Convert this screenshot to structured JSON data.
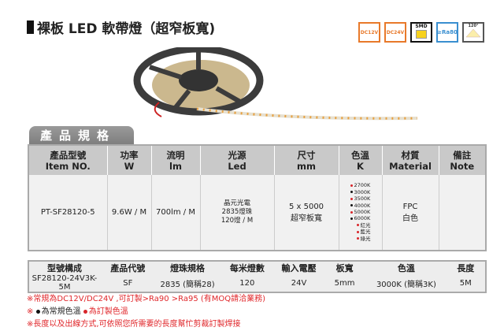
{
  "title": "裸板 LED 軟帶燈（超窄板寬)",
  "badges": [
    {
      "label": "DC12V",
      "icon": "dc12v-icon",
      "color": "#e8792a"
    },
    {
      "label": "DC24V",
      "icon": "dc24v-icon",
      "color": "#e8792a"
    },
    {
      "label": "SMD",
      "icon": "smd-chip-icon",
      "color": "#111111"
    },
    {
      "label": "≥Ra80",
      "icon": "ra80-icon",
      "color": "#3a8fd0"
    },
    {
      "label": "120°",
      "icon": "beam-angle-icon",
      "color": "#555555"
    }
  ],
  "section_tab": "產品規格",
  "spec_table": {
    "headers": [
      [
        "產品型號",
        "Item NO."
      ],
      [
        "功率",
        "W"
      ],
      [
        "流明",
        "lm"
      ],
      [
        "光源",
        "Led"
      ],
      [
        "尺寸",
        "mm"
      ],
      [
        "色溫",
        "K"
      ],
      [
        "材質",
        "Material"
      ],
      [
        "備註",
        "Note"
      ]
    ],
    "row": {
      "item": "PT-SF28120-5",
      "power": "9.6W / M",
      "lumen": "700lm / M",
      "led": [
        "晶元光電",
        "2835燈珠",
        "120燈 / M"
      ],
      "size": [
        "5 x 5000",
        "超窄板寬"
      ],
      "color_temps": [
        {
          "label": "2700K",
          "dot": "#d8262b"
        },
        {
          "label": "3000K",
          "dot": "#111111"
        },
        {
          "label": "3500K",
          "dot": "#d8262b"
        },
        {
          "label": "4000K",
          "dot": "#111111"
        },
        {
          "label": "5000K",
          "dot": "#d8262b"
        },
        {
          "label": "6000K",
          "dot": "#111111"
        },
        {
          "label": "紅光",
          "dot": "#d8262b"
        },
        {
          "label": "藍光",
          "dot": "#d8262b"
        },
        {
          "label": "綠光",
          "dot": "#d8262b"
        }
      ],
      "material": [
        "FPC",
        "白色"
      ],
      "note": ""
    }
  },
  "code_table": {
    "headers": [
      "型號構成",
      "產品代號",
      "燈珠規格",
      "每米燈數",
      "輸入電壓",
      "板寬",
      "色溫",
      "長度"
    ],
    "values": [
      "SF28120-24V3K-5M",
      "SF",
      "2835 (簡稱28)",
      "120",
      "24V",
      "5mm",
      "3000K (簡稱3K)",
      "5M"
    ]
  },
  "notes": [
    "※常規為DC12V/DC24V ,可訂製>Ra90 >Ra95 (有MOQ請洽業務)",
    "※",
    "為常規色溫",
    "為訂製色溫",
    "※長度以及出線方式,可依照您所需要的長度幫忙剪裁訂製焊接"
  ]
}
